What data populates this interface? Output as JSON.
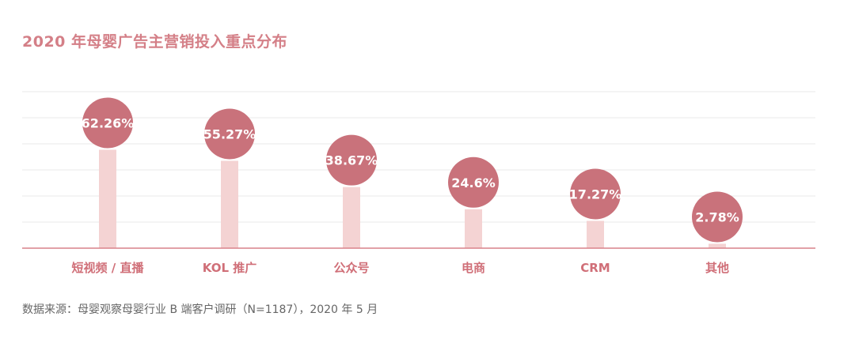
{
  "title": "2020 年母婴广告主营销投入重点分布",
  "source": "数据来源：母婴观察母婴行业 B 端客户调研（N=1187），2020 年 5 月",
  "colors": {
    "title": "#d47f87",
    "bubble": "#c9727b",
    "bar": "#f4d3d3",
    "axis": "#d9828a",
    "grid": "#e8e8e8",
    "category_label": "#d06f78",
    "source_text": "#666666"
  },
  "chart_data": {
    "type": "bar",
    "title": "2020 年母婴广告主营销投入重点分布",
    "xlabel": "",
    "ylabel": "",
    "grid": true,
    "legend": "none",
    "ylim": [
      0,
      100
    ],
    "categories": [
      "短视频 / 直播",
      "KOL 推广",
      "公众号",
      "电商",
      "CRM",
      "其他"
    ],
    "values": [
      62.26,
      55.27,
      38.67,
      24.6,
      17.27,
      2.78
    ],
    "data_labels": [
      "62.26%",
      "55.27%",
      "38.67%",
      "24.6%",
      "17.27%",
      "2.78%"
    ]
  }
}
